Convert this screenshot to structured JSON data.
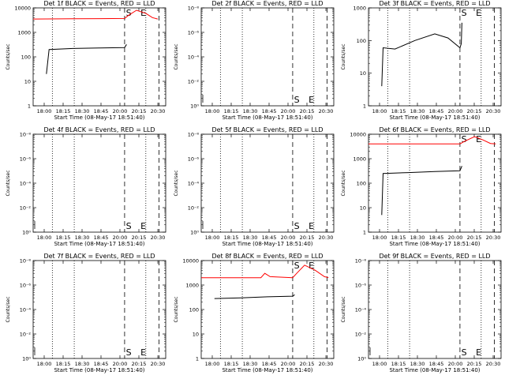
{
  "chart_data": [
    {
      "type": "line",
      "title": "Det 1f BLACK = Events, RED = LLD",
      "xlabel": "Start Time (08-May-17 18:51:40)",
      "ylabel": "Counts/sec",
      "x_ticks": [
        "18:00",
        "18:15",
        "18:30",
        "18:45",
        "20:00",
        "20:15",
        "20:30"
      ],
      "y_ticks": [
        "1",
        "10",
        "100",
        "1000",
        "10000"
      ],
      "log": true,
      "markers": [
        "S",
        "E"
      ],
      "marker_pos": "top",
      "series": [
        {
          "color": "#000000",
          "points": [
            [
              0.1,
              20
            ],
            [
              0.12,
              200
            ],
            [
              0.3,
              220
            ],
            [
              0.5,
              230
            ],
            [
              0.69,
              240
            ],
            [
              0.705,
              320
            ]
          ]
        },
        {
          "color": "#ff0000",
          "points": [
            [
              0.0,
              3500
            ],
            [
              0.3,
              3600
            ],
            [
              0.69,
              3700
            ],
            [
              0.72,
              5000
            ],
            [
              0.78,
              8000
            ],
            [
              0.85,
              6000
            ],
            [
              0.9,
              4000
            ],
            [
              0.94,
              3500
            ]
          ]
        }
      ]
    },
    {
      "type": "line",
      "title": "Det 2f BLACK = Events, RED = LLD",
      "xlabel": "Start Time (08-May-17 18:51:40)",
      "ylabel": "Counts/sec",
      "x_ticks": [
        "18:00",
        "18:15",
        "18:30",
        "18:45",
        "20:00",
        "20:15",
        "20:30"
      ],
      "y_ticks": [
        "10⁰",
        "10⁻²",
        "10⁻⁴",
        "10⁻⁶",
        "10⁻⁸"
      ],
      "log": false,
      "markers": [
        "S",
        "E"
      ],
      "marker_pos": "bottom",
      "series": []
    },
    {
      "type": "line",
      "title": "Det 3f BLACK = Events, RED = LLD",
      "xlabel": "Start Time (08-May-17 18:51:40)",
      "ylabel": "Counts/sec",
      "x_ticks": [
        "18:00",
        "18:15",
        "18:30",
        "18:45",
        "20:00",
        "20:15",
        "20:30"
      ],
      "y_ticks": [
        "1",
        "10",
        "100",
        "1000"
      ],
      "log": true,
      "markers": [
        "S",
        "E"
      ],
      "marker_pos": "top",
      "series": [
        {
          "color": "#000000",
          "points": [
            [
              0.1,
              4
            ],
            [
              0.11,
              60
            ],
            [
              0.2,
              55
            ],
            [
              0.35,
              100
            ],
            [
              0.5,
              160
            ],
            [
              0.6,
              120
            ],
            [
              0.69,
              60
            ],
            [
              0.7,
              80
            ],
            [
              0.705,
              350
            ]
          ]
        }
      ]
    },
    {
      "type": "line",
      "title": "Det 4f BLACK = Events, RED = LLD",
      "xlabel": "Start Time (08-May-17 18:51:40)",
      "ylabel": "Counts/sec",
      "x_ticks": [
        "18:00",
        "18:15",
        "18:30",
        "18:45",
        "20:00",
        "20:15",
        "20:30"
      ],
      "y_ticks": [
        "10⁰",
        "10⁻²",
        "10⁻⁴",
        "10⁻⁶",
        "10⁻⁸"
      ],
      "log": false,
      "markers": [
        "S",
        "E"
      ],
      "marker_pos": "bottom",
      "series": []
    },
    {
      "type": "line",
      "title": "Det 5f BLACK = Events, RED = LLD",
      "xlabel": "Start Time (08-May-17 18:51:40)",
      "ylabel": "Counts/sec",
      "x_ticks": [
        "18:00",
        "18:15",
        "18:30",
        "18:45",
        "20:00",
        "20:15",
        "20:30"
      ],
      "y_ticks": [
        "10⁰",
        "10⁻²",
        "10⁻⁴",
        "10⁻⁶",
        "10⁻⁸"
      ],
      "log": false,
      "markers": [
        "S",
        "E"
      ],
      "marker_pos": "bottom",
      "series": []
    },
    {
      "type": "line",
      "title": "Det 6f BLACK = Events, RED = LLD",
      "xlabel": "Start Time (08-May-17 18:51:40)",
      "ylabel": "Counts/sec",
      "x_ticks": [
        "18:00",
        "18:15",
        "18:30",
        "18:45",
        "20:00",
        "20:15",
        "20:30"
      ],
      "y_ticks": [
        "1",
        "10",
        "100",
        "1000",
        "10000"
      ],
      "log": true,
      "markers": [
        "S",
        "E"
      ],
      "marker_pos": "top",
      "series": [
        {
          "color": "#000000",
          "points": [
            [
              0.1,
              5
            ],
            [
              0.11,
              250
            ],
            [
              0.3,
              270
            ],
            [
              0.5,
              300
            ],
            [
              0.69,
              320
            ],
            [
              0.705,
              500
            ]
          ]
        },
        {
          "color": "#ff0000",
          "points": [
            [
              0.0,
              4000
            ],
            [
              0.3,
              4000
            ],
            [
              0.69,
              4000
            ],
            [
              0.72,
              5000
            ],
            [
              0.8,
              8000
            ],
            [
              0.86,
              6000
            ],
            [
              0.92,
              4200
            ],
            [
              0.96,
              4000
            ]
          ]
        }
      ]
    },
    {
      "type": "line",
      "title": "Det 7f BLACK = Events, RED = LLD",
      "xlabel": "Start Time (08-May-17 18:51:40)",
      "ylabel": "Counts/sec",
      "x_ticks": [
        "18:00",
        "18:15",
        "18:30",
        "18:45",
        "20:00",
        "20:15",
        "20:30"
      ],
      "y_ticks": [
        "10⁰",
        "10⁻²",
        "10⁻⁴",
        "10⁻⁶",
        "10⁻⁸"
      ],
      "log": false,
      "markers": [
        "S",
        "E"
      ],
      "marker_pos": "bottom",
      "series": []
    },
    {
      "type": "line",
      "title": "Det 8f BLACK = Events, RED = LLD",
      "xlabel": "Start Time (08-May-17 18:51:40)",
      "ylabel": "Counts/sec",
      "x_ticks": [
        "18:00",
        "18:15",
        "18:30",
        "18:45",
        "20:00",
        "20:15",
        "20:30"
      ],
      "y_ticks": [
        "1",
        "10",
        "100",
        "1000",
        "10000"
      ],
      "log": true,
      "markers": [
        "S",
        "E"
      ],
      "marker_pos": "top",
      "series": [
        {
          "color": "#000000",
          "points": [
            [
              0.1,
              280
            ],
            [
              0.3,
              300
            ],
            [
              0.5,
              330
            ],
            [
              0.69,
              350
            ],
            [
              0.705,
              400
            ]
          ]
        },
        {
          "color": "#ff0000",
          "points": [
            [
              0.0,
              2000
            ],
            [
              0.25,
              2000
            ],
            [
              0.45,
              2000
            ],
            [
              0.48,
              3000
            ],
            [
              0.52,
              2200
            ],
            [
              0.69,
              2000
            ],
            [
              0.72,
              3000
            ],
            [
              0.78,
              6500
            ],
            [
              0.86,
              4000
            ],
            [
              0.93,
              2200
            ],
            [
              0.96,
              2000
            ]
          ]
        }
      ]
    },
    {
      "type": "line",
      "title": "Det 9f BLACK = Events, RED = LLD",
      "xlabel": "Start Time (08-May-17 18:51:40)",
      "ylabel": "Counts/sec",
      "x_ticks": [
        "18:00",
        "18:15",
        "18:30",
        "18:45",
        "20:00",
        "20:15",
        "20:30"
      ],
      "y_ticks": [
        "10⁰",
        "10⁻²",
        "10⁻⁴",
        "10⁻⁶",
        "10⁻⁸"
      ],
      "log": false,
      "markers": [
        "S",
        "E"
      ],
      "marker_pos": "bottom",
      "series": []
    }
  ]
}
